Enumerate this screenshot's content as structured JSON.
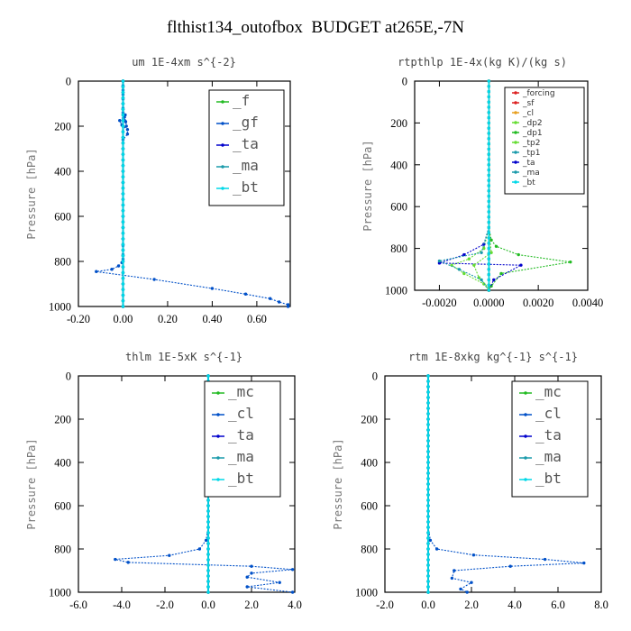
{
  "title": "flthist134_outofbox  BUDGET at265E,-7N",
  "colors": {
    "green": "#22bb22",
    "blue": "#0050c8",
    "navy": "#0000cc",
    "teal": "#1a9aaa",
    "cyan": "#00d8e8",
    "red": "#dd2222",
    "orange": "#e8a020",
    "lime": "#66dd33"
  },
  "chart_data": [
    {
      "type": "line",
      "title": "um  1E-4xm s^{-2}",
      "ylabel": "Pressure [hPa]",
      "ylim": [
        1000,
        0
      ],
      "xlim": [
        -0.2,
        0.75
      ],
      "xticks": [
        "-0.20",
        "0.00",
        "0.20",
        "0.40",
        "0.60"
      ],
      "xtick_values": [
        -0.2,
        0.0,
        0.2,
        0.4,
        0.6
      ],
      "yticks": [
        "0",
        "200",
        "400",
        "600",
        "800",
        "1000"
      ],
      "legend_style": "big",
      "legend": [
        "_f",
        "_gf",
        "_ta",
        "_ma",
        "_bt"
      ],
      "series": [
        {
          "name": "_f",
          "color": "green",
          "x": [
            0,
            0
          ],
          "y": [
            0,
            1000
          ]
        },
        {
          "name": "_gf",
          "color": "blue",
          "x": [
            0,
            0,
            0,
            0,
            0,
            0,
            0,
            0,
            0.005,
            0.012,
            0.015,
            0.01,
            -0.015,
            -0.005,
            0.02,
            0.02,
            0.0,
            0.0,
            0.0,
            0.0,
            0.0,
            0.0,
            0.0,
            0.0,
            0.0,
            0.0,
            0.0,
            0.0,
            0.0,
            0.0,
            -0.005,
            -0.02,
            -0.05,
            -0.12,
            0.14,
            0.4,
            0.55,
            0.66,
            0.7,
            0.74,
            0.74
          ],
          "y": [
            0,
            20,
            40,
            60,
            80,
            100,
            120,
            140,
            160,
            180,
            200,
            150,
            175,
            195,
            215,
            235,
            260,
            300,
            350,
            400,
            450,
            500,
            550,
            600,
            650,
            700,
            730,
            750,
            770,
            790,
            805,
            820,
            835,
            845,
            880,
            920,
            945,
            965,
            980,
            992,
            1000
          ]
        },
        {
          "name": "_ta",
          "color": "navy",
          "x": [
            0,
            0
          ],
          "y": [
            0,
            1000
          ]
        },
        {
          "name": "_ma",
          "color": "teal",
          "x": [
            0,
            0
          ],
          "y": [
            0,
            1000
          ]
        },
        {
          "name": "_bt",
          "color": "cyan",
          "x": [
            0,
            0
          ],
          "y": [
            0,
            1000
          ]
        }
      ]
    },
    {
      "type": "line",
      "title": "rtpthlp  1E-4x(kg K)/(kg s)",
      "ylabel": "Pressure [hPa]",
      "ylim": [
        1000,
        0
      ],
      "xlim": [
        -0.003,
        0.004
      ],
      "xticks": [
        "-0.0020",
        "0.0000",
        "0.0020",
        "0.0040"
      ],
      "xtick_values": [
        -0.002,
        0.0,
        0.002,
        0.004
      ],
      "yticks": [
        "0",
        "200",
        "400",
        "600",
        "800",
        "1000"
      ],
      "legend_style": "small",
      "legend": [
        "_forcing",
        "_sf",
        "_cl",
        "_dp2",
        "_dp1",
        "_tp2",
        "_tp1",
        "_ta",
        "_ma",
        "_bt"
      ],
      "series": [
        {
          "name": "_forcing",
          "color": "red",
          "x": [
            0,
            0
          ],
          "y": [
            0,
            1000
          ]
        },
        {
          "name": "_sf",
          "color": "red",
          "x": [
            0,
            0
          ],
          "y": [
            0,
            1000
          ]
        },
        {
          "name": "_cl",
          "color": "orange",
          "x": [
            0,
            0
          ],
          "y": [
            0,
            1000
          ]
        },
        {
          "name": "_dp2",
          "color": "lime",
          "x": [
            0,
            0.0001,
            -0.0006,
            -0.0004,
            0,
            0
          ],
          "y": [
            700,
            820,
            880,
            940,
            990,
            1000
          ]
        },
        {
          "name": "_dp1",
          "color": "green",
          "x": [
            0,
            0.0001,
            0.0003,
            0.0012,
            0.0033,
            0.0005,
            0.0001,
            0
          ],
          "y": [
            700,
            760,
            790,
            830,
            865,
            920,
            980,
            1000
          ]
        },
        {
          "name": "_tp2",
          "color": "lime",
          "x": [
            0,
            -0.0002,
            -0.0008,
            -0.0015,
            -0.001,
            -0.0002,
            0
          ],
          "y": [
            700,
            800,
            850,
            880,
            920,
            970,
            1000
          ]
        },
        {
          "name": "_tp1",
          "color": "teal",
          "x": [
            0,
            -0.0003,
            -0.002,
            -0.0012,
            -0.0003,
            0
          ],
          "y": [
            700,
            820,
            860,
            900,
            950,
            1000
          ]
        },
        {
          "name": "_ta",
          "color": "navy",
          "x": [
            0,
            -0.0002,
            -0.001,
            -0.002,
            0.0013,
            0.0002,
            0
          ],
          "y": [
            700,
            780,
            830,
            870,
            880,
            950,
            1000
          ]
        },
        {
          "name": "_ma",
          "color": "teal",
          "x": [
            0,
            0
          ],
          "y": [
            0,
            1000
          ]
        },
        {
          "name": "_bt",
          "color": "cyan",
          "x": [
            0,
            0
          ],
          "y": [
            0,
            1000
          ]
        }
      ]
    },
    {
      "type": "line",
      "title": "thlm  1E-5xK s^{-1}",
      "ylabel": "Pressure [hPa]",
      "ylim": [
        1000,
        0
      ],
      "xlim": [
        -6.0,
        4.0
      ],
      "xticks": [
        "-6.0",
        "-4.0",
        "-2.0",
        "0.0",
        "2.0",
        "4.0"
      ],
      "xtick_values": [
        -6,
        -4,
        -2,
        0,
        2,
        4
      ],
      "yticks": [
        "0",
        "200",
        "400",
        "600",
        "800",
        "1000"
      ],
      "legend_style": "big",
      "legend": [
        "_mc",
        "_cl",
        "_ta",
        "_ma",
        "_bt"
      ],
      "series": [
        {
          "name": "_mc",
          "color": "green",
          "x": [
            0,
            0
          ],
          "y": [
            0,
            1000
          ]
        },
        {
          "name": "_cl",
          "color": "blue",
          "x": [
            0,
            0,
            0,
            0,
            0,
            0,
            0,
            0,
            0,
            0,
            0,
            0,
            0,
            0,
            0,
            -0.1,
            -0.4,
            -1.8,
            -4.3,
            -3.7,
            2.0,
            3.9,
            2.0,
            1.8,
            3.3,
            1.8,
            3.9
          ],
          "y": [
            0,
            50,
            100,
            150,
            200,
            250,
            300,
            350,
            400,
            450,
            500,
            550,
            600,
            650,
            700,
            760,
            800,
            830,
            848,
            862,
            880,
            895,
            912,
            930,
            955,
            975,
            1000
          ]
        },
        {
          "name": "_ta",
          "color": "navy",
          "x": [
            0,
            0
          ],
          "y": [
            0,
            1000
          ]
        },
        {
          "name": "_ma",
          "color": "teal",
          "x": [
            0,
            0
          ],
          "y": [
            0,
            1000
          ]
        },
        {
          "name": "_bt",
          "color": "cyan",
          "x": [
            0,
            0
          ],
          "y": [
            0,
            1000
          ]
        }
      ]
    },
    {
      "type": "line",
      "title": "rtm  1E-8xkg kg^{-1} s^{-1}",
      "ylabel": "Pressure [hPa]",
      "ylim": [
        1000,
        0
      ],
      "xlim": [
        -2.0,
        8.0
      ],
      "xticks": [
        "-2.0",
        "0.0",
        "2.0",
        "4.0",
        "6.0",
        "8.0"
      ],
      "xtick_values": [
        -2,
        0,
        2,
        4,
        6,
        8
      ],
      "yticks": [
        "0",
        "200",
        "400",
        "600",
        "800",
        "1000"
      ],
      "legend_style": "big",
      "legend": [
        "_mc",
        "_cl",
        "_ta",
        "_ma",
        "_bt"
      ],
      "series": [
        {
          "name": "_mc",
          "color": "green",
          "x": [
            0,
            0
          ],
          "y": [
            0,
            1000
          ]
        },
        {
          "name": "_cl",
          "color": "blue",
          "x": [
            0,
            0,
            0,
            0,
            0,
            0,
            0,
            0,
            0,
            0,
            0,
            0,
            0,
            0,
            0,
            0.1,
            0.4,
            2.1,
            5.4,
            7.2,
            3.8,
            1.2,
            1.1,
            2.0,
            1.5,
            1.8
          ],
          "y": [
            0,
            50,
            100,
            150,
            200,
            250,
            300,
            350,
            400,
            450,
            500,
            550,
            600,
            650,
            700,
            760,
            800,
            828,
            848,
            865,
            880,
            900,
            935,
            955,
            985,
            1000
          ]
        },
        {
          "name": "_ta",
          "color": "navy",
          "x": [
            0,
            0
          ],
          "y": [
            0,
            1000
          ]
        },
        {
          "name": "_ma",
          "color": "teal",
          "x": [
            0,
            0
          ],
          "y": [
            0,
            1000
          ]
        },
        {
          "name": "_bt",
          "color": "cyan",
          "x": [
            0,
            0
          ],
          "y": [
            0,
            1000
          ]
        }
      ]
    }
  ]
}
